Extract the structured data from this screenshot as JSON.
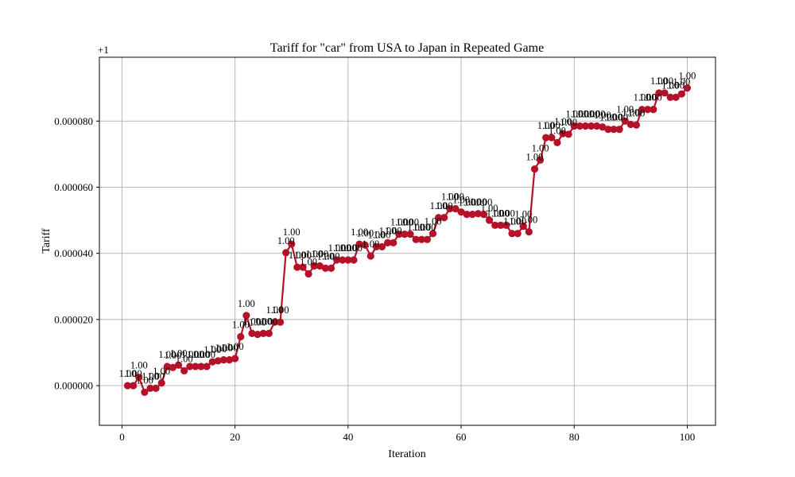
{
  "chart_data": {
    "type": "line",
    "title": "Tariff for \"car\" from USA to Japan in Repeated Game",
    "xlabel": "Iteration",
    "ylabel": "Tariff",
    "offset_label": "+1",
    "xlim": [
      -4,
      105
    ],
    "ylim": [
      -1.2e-05,
      9.93e-05
    ],
    "x_ticks": [
      0,
      20,
      40,
      60,
      80,
      100
    ],
    "y_ticks": [
      0.0,
      2e-05,
      4e-05,
      6e-05,
      8e-05
    ],
    "y_tick_labels": [
      "0.000000",
      "0.000020",
      "0.000040",
      "0.000060",
      "0.000080"
    ],
    "grid": true,
    "line_color": "#b5122a",
    "point_label": "1.00",
    "series": [
      {
        "x": [
          1,
          2,
          3,
          4,
          5,
          6,
          7,
          8,
          9,
          10,
          11,
          12,
          13,
          14,
          15,
          16,
          17,
          18,
          19,
          20,
          21,
          22,
          23,
          24,
          25,
          26,
          27,
          28,
          29,
          30,
          31,
          32,
          33,
          34,
          35,
          36,
          37,
          38,
          39,
          40,
          41,
          42,
          43,
          44,
          45,
          46,
          47,
          48,
          49,
          50,
          51,
          52,
          53,
          54,
          55,
          56,
          57,
          58,
          59,
          60,
          61,
          62,
          63,
          64,
          65,
          66,
          67,
          68,
          69,
          70,
          71,
          72,
          73,
          74,
          75,
          76,
          77,
          78,
          79,
          80,
          81,
          82,
          83,
          84,
          85,
          86,
          87,
          88,
          89,
          90,
          91,
          92,
          93,
          94,
          95,
          96,
          97,
          98,
          99,
          100
        ],
        "values": [
          0.0,
          0.0,
          2.5e-06,
          -2e-06,
          -8e-07,
          -8e-07,
          8e-07,
          5.8e-06,
          5.5e-06,
          6.2e-06,
          4.5e-06,
          5.8e-06,
          5.8e-06,
          5.8e-06,
          5.8e-06,
          7.2e-06,
          7.5e-06,
          7.8e-06,
          7.8e-06,
          8.2e-06,
          1.48e-05,
          2.12e-05,
          1.58e-05,
          1.55e-05,
          1.58e-05,
          1.58e-05,
          1.92e-05,
          1.92e-05,
          4.02e-05,
          4.28e-05,
          3.58e-05,
          3.58e-05,
          3.38e-05,
          3.62e-05,
          3.62e-05,
          3.55e-05,
          3.55e-05,
          3.8e-05,
          3.8e-05,
          3.8e-05,
          3.8e-05,
          4.28e-05,
          4.25e-05,
          3.92e-05,
          4.2e-05,
          4.2e-05,
          4.32e-05,
          4.32e-05,
          4.58e-05,
          4.58e-05,
          4.58e-05,
          4.42e-05,
          4.42e-05,
          4.42e-05,
          4.6e-05,
          5.08e-05,
          5.08e-05,
          5.35e-05,
          5.35e-05,
          5.25e-05,
          5.18e-05,
          5.18e-05,
          5.2e-05,
          5.18e-05,
          5e-05,
          4.85e-05,
          4.85e-05,
          4.85e-05,
          4.6e-05,
          4.6e-05,
          4.82e-05,
          4.65e-05,
          6.55e-05,
          6.82e-05,
          7.5e-05,
          7.5e-05,
          7.35e-05,
          7.62e-05,
          7.6e-05,
          7.85e-05,
          7.85e-05,
          7.85e-05,
          7.85e-05,
          7.85e-05,
          7.82e-05,
          7.75e-05,
          7.75e-05,
          7.75e-05,
          8e-05,
          7.9e-05,
          7.88e-05,
          8.35e-05,
          8.35e-05,
          8.35e-05,
          8.85e-05,
          8.85e-05,
          8.72e-05,
          8.72e-05,
          8.82e-05,
          9e-05
        ]
      }
    ]
  }
}
